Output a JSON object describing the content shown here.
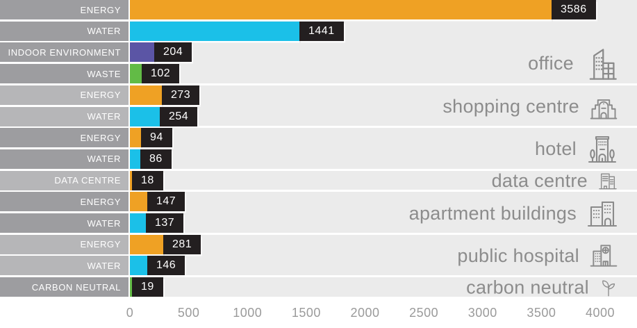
{
  "chart_data": {
    "type": "bar",
    "orientation": "horizontal",
    "value_axis": {
      "ticks": [
        0,
        500,
        1000,
        1500,
        2000,
        2500,
        3000,
        3500,
        4000
      ],
      "min": 0,
      "max": 4000,
      "position": "bottom"
    },
    "groups": [
      {
        "label": "office",
        "icon": "office-icon",
        "label_shade": "dark",
        "rows": [
          {
            "category": "ENERGY",
            "value": 3586,
            "series": "energy"
          },
          {
            "category": "WATER",
            "value": 1441,
            "series": "water"
          },
          {
            "category": "INDOOR ENVIRONMENT",
            "value": 204,
            "series": "indoor-environment"
          },
          {
            "category": "WASTE",
            "value": 102,
            "series": "waste"
          }
        ]
      },
      {
        "label": "shopping centre",
        "icon": "shopping-centre-icon",
        "label_shade": "light",
        "rows": [
          {
            "category": "ENERGY",
            "value": 273,
            "series": "energy"
          },
          {
            "category": "WATER",
            "value": 254,
            "series": "water"
          }
        ]
      },
      {
        "label": "hotel",
        "icon": "hotel-icon",
        "label_shade": "dark",
        "rows": [
          {
            "category": "ENERGY",
            "value": 94,
            "series": "energy"
          },
          {
            "category": "WATER",
            "value": 86,
            "series": "water"
          }
        ]
      },
      {
        "label": "data centre",
        "icon": "data-centre-icon",
        "label_shade": "light",
        "rows": [
          {
            "category": "DATA CENTRE",
            "value": 18,
            "series": "energy"
          }
        ]
      },
      {
        "label": "apartment buildings",
        "icon": "apartment-buildings-icon",
        "label_shade": "dark",
        "rows": [
          {
            "category": "ENERGY",
            "value": 147,
            "series": "energy"
          },
          {
            "category": "WATER",
            "value": 137,
            "series": "water"
          }
        ]
      },
      {
        "label": "public hospital",
        "icon": "public-hospital-icon",
        "label_shade": "light",
        "rows": [
          {
            "category": "ENERGY",
            "value": 281,
            "series": "energy"
          },
          {
            "category": "WATER",
            "value": 146,
            "series": "water"
          }
        ]
      },
      {
        "label": "carbon neutral",
        "icon": "carbon-neutral-icon",
        "label_shade": "dark",
        "rows": [
          {
            "category": "CARBON NEUTRAL",
            "value": 19,
            "series": "carbon-neutral"
          }
        ]
      }
    ],
    "series_colors": {
      "energy": "#efa124",
      "water": "#1bc0e8",
      "indoor-environment": "#5b55a5",
      "waste": "#62bb46",
      "carbon-neutral": "#62bb46"
    },
    "style_colors": {
      "label_box_dark": "#9d9da0",
      "label_box_light": "#b6b6b8",
      "plot_background": "#ebebeb",
      "value_badge_background": "#231f20",
      "value_text": "#ffffff",
      "group_label_text": "#8c8c8c",
      "axis_text": "#9a9a9a"
    }
  }
}
